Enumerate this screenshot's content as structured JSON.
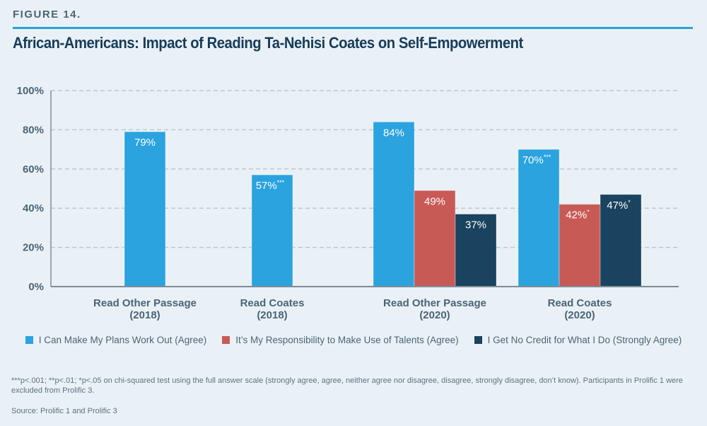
{
  "figure_label": "FIGURE 14.",
  "title": "African-Americans: Impact of Reading Ta-Nehisi Coates on Self-Empowerment",
  "colors": {
    "accent_rule": "#2aa3de",
    "series": [
      "#2aa3de",
      "#c85a55",
      "#19435e"
    ]
  },
  "chart_data": {
    "type": "bar",
    "title": "African-Americans: Impact of Reading Ta-Nehisi Coates on Self-Empowerment",
    "xlabel": "",
    "ylabel": "",
    "ylim": [
      0,
      100
    ],
    "yticks": [
      "0%",
      "20%",
      "40%",
      "60%",
      "80%",
      "100%"
    ],
    "ytick_values": [
      0,
      20,
      40,
      60,
      80,
      100
    ],
    "grid": true,
    "legend_position": "bottom",
    "categories": [
      [
        "Read Other Passage",
        "(2018)"
      ],
      [
        "Read Coates",
        "(2018)"
      ],
      [
        "Read Other Passage",
        "(2020)"
      ],
      [
        "Read Coates",
        "(2020)"
      ]
    ],
    "series": [
      {
        "name": "I Can Make My Plans Work Out (Agree)",
        "values": [
          79,
          57,
          84,
          70
        ],
        "labels": [
          "79%",
          "57%",
          "84%",
          "70%"
        ],
        "significance": [
          "",
          "***",
          "",
          "***"
        ]
      },
      {
        "name": "It’s My Responsibility to Make Use of Talents (Agree)",
        "values": [
          null,
          null,
          49,
          42
        ],
        "labels": [
          "",
          "",
          "49%",
          "42%"
        ],
        "significance": [
          "",
          "",
          "",
          "*"
        ]
      },
      {
        "name": "I Get No Credit for What I Do (Strongly Agree)",
        "values": [
          null,
          null,
          37,
          47
        ],
        "labels": [
          "",
          "",
          "37%",
          "47%"
        ],
        "significance": [
          "",
          "",
          "",
          "*"
        ]
      }
    ]
  },
  "footnote": "***p<.001; **p<.01; *p<.05 on chi-squared test using the full answer scale (strongly agree, agree, neither agree nor disagree, disagree, strongly disagree, don’t know). Participants in Prolific 1 were excluded from Prolific 3.",
  "source": "Source: Prolific 1 and Prolific 3"
}
